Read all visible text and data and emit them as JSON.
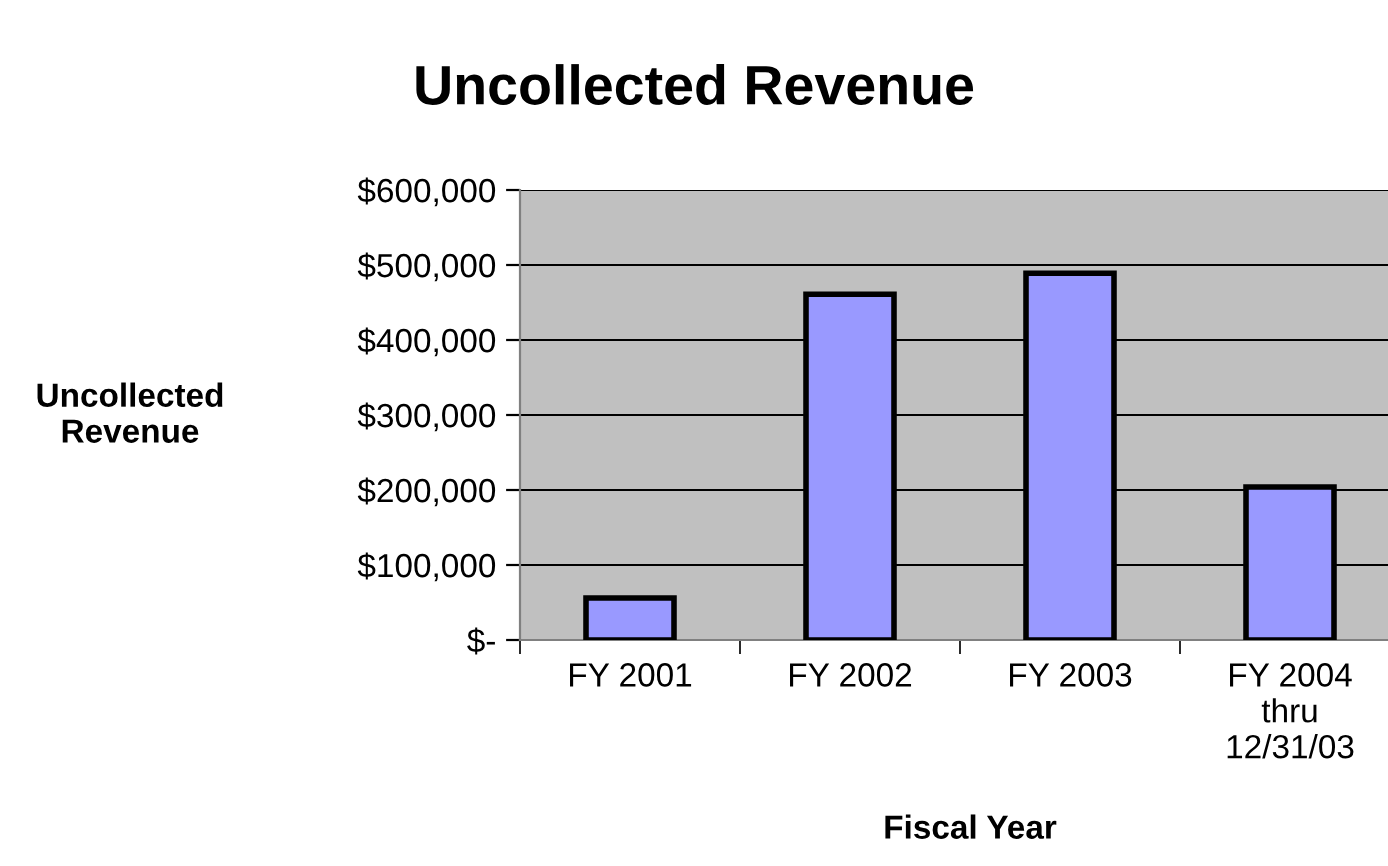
{
  "chart_data": {
    "type": "bar",
    "title": "Uncollected Revenue",
    "xlabel": "Fiscal Year",
    "ylabel": "Uncollected\nRevenue",
    "categories": [
      "FY 2001",
      "FY 2002",
      "FY 2003",
      "FY 2004\nthru\n12/31/03"
    ],
    "values": [
      56000,
      461000,
      489000,
      204000
    ],
    "color": "#9999ff",
    "ylim": [
      0,
      600000
    ],
    "yticks": [
      {
        "value": 0,
        "label": "$-"
      },
      {
        "value": 100000,
        "label": "$100,000"
      },
      {
        "value": 200000,
        "label": "$200,000"
      },
      {
        "value": 300000,
        "label": "$300,000"
      },
      {
        "value": 400000,
        "label": "$400,000"
      },
      {
        "value": 500000,
        "label": "$500,000"
      },
      {
        "value": 600000,
        "label": "$600,000"
      }
    ],
    "grid": "y",
    "legend": false
  }
}
